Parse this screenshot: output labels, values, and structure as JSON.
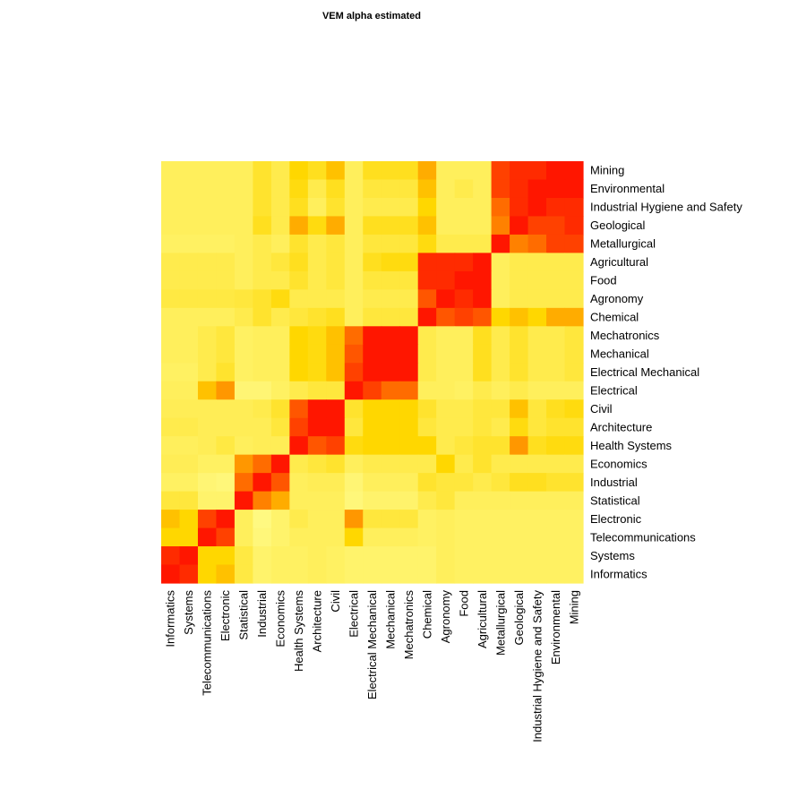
{
  "chart_data": {
    "type": "heatmap",
    "title": "VEM alpha estimated",
    "x_labels": [
      "Informatics",
      "Systems",
      "Telecommunications",
      "Electronic",
      "Statistical",
      "Industrial",
      "Economics",
      "Health Systems",
      "Architecture",
      "Civil",
      "Electrical",
      "Electrical Mechanical",
      "Mechanical",
      "Mechatronics",
      "Chemical",
      "Agronomy",
      "Food",
      "Agricultural",
      "Metallurgical",
      "Geological",
      "Industrial Hygiene and Safety",
      "Environmental",
      "Mining"
    ],
    "y_labels_top_to_bottom": [
      "Mining",
      "Environmental",
      "Industrial Hygiene and Safety",
      "Geological",
      "Metallurgical",
      "Agricultural",
      "Food",
      "Agronomy",
      "Chemical",
      "Mechatronics",
      "Mechanical",
      "Electrical Mechanical",
      "Electrical",
      "Civil",
      "Architecture",
      "Health Systems",
      "Economics",
      "Industrial",
      "Statistical",
      "Electronic",
      "Telecommunications",
      "Systems",
      "Informatics"
    ],
    "color_scale": {
      "low": "#ffff99",
      "mid": "#ffd700",
      "high": "#ff0000"
    },
    "value_range": [
      0,
      1
    ],
    "grid": false,
    "legend": "none",
    "values": [
      [
        0.2,
        0.2,
        0.2,
        0.2,
        0.2,
        0.35,
        0.25,
        0.5,
        0.4,
        0.55,
        0.2,
        0.4,
        0.4,
        0.4,
        0.6,
        0.2,
        0.2,
        0.2,
        0.85,
        0.9,
        0.9,
        0.95,
        0.95
      ],
      [
        0.2,
        0.2,
        0.2,
        0.2,
        0.2,
        0.35,
        0.25,
        0.45,
        0.25,
        0.4,
        0.2,
        0.3,
        0.3,
        0.3,
        0.55,
        0.2,
        0.25,
        0.2,
        0.85,
        0.9,
        0.95,
        0.95,
        0.95
      ],
      [
        0.2,
        0.2,
        0.2,
        0.2,
        0.2,
        0.35,
        0.25,
        0.4,
        0.2,
        0.35,
        0.2,
        0.25,
        0.25,
        0.25,
        0.5,
        0.2,
        0.2,
        0.2,
        0.75,
        0.9,
        0.95,
        0.9,
        0.9
      ],
      [
        0.2,
        0.2,
        0.2,
        0.2,
        0.2,
        0.4,
        0.25,
        0.6,
        0.45,
        0.6,
        0.2,
        0.4,
        0.4,
        0.4,
        0.55,
        0.2,
        0.2,
        0.2,
        0.7,
        0.95,
        0.85,
        0.85,
        0.9
      ],
      [
        0.18,
        0.18,
        0.18,
        0.18,
        0.2,
        0.25,
        0.2,
        0.35,
        0.25,
        0.3,
        0.2,
        0.3,
        0.3,
        0.3,
        0.45,
        0.25,
        0.25,
        0.25,
        0.95,
        0.7,
        0.75,
        0.85,
        0.85
      ],
      [
        0.25,
        0.25,
        0.25,
        0.25,
        0.2,
        0.25,
        0.3,
        0.4,
        0.25,
        0.3,
        0.2,
        0.4,
        0.45,
        0.45,
        0.9,
        0.9,
        0.9,
        0.95,
        0.2,
        0.25,
        0.25,
        0.25,
        0.25
      ],
      [
        0.25,
        0.25,
        0.25,
        0.25,
        0.2,
        0.25,
        0.25,
        0.35,
        0.25,
        0.3,
        0.2,
        0.3,
        0.3,
        0.3,
        0.9,
        0.9,
        0.95,
        0.95,
        0.2,
        0.25,
        0.25,
        0.25,
        0.25
      ],
      [
        0.28,
        0.28,
        0.28,
        0.28,
        0.3,
        0.35,
        0.45,
        0.25,
        0.25,
        0.25,
        0.2,
        0.25,
        0.25,
        0.25,
        0.8,
        0.95,
        0.9,
        0.95,
        0.2,
        0.25,
        0.25,
        0.25,
        0.25
      ],
      [
        0.2,
        0.2,
        0.2,
        0.2,
        0.25,
        0.35,
        0.25,
        0.3,
        0.35,
        0.4,
        0.2,
        0.3,
        0.3,
        0.3,
        0.95,
        0.8,
        0.85,
        0.8,
        0.5,
        0.55,
        0.5,
        0.6,
        0.6
      ],
      [
        0.2,
        0.2,
        0.25,
        0.3,
        0.18,
        0.2,
        0.2,
        0.5,
        0.45,
        0.55,
        0.75,
        0.95,
        0.95,
        0.95,
        0.25,
        0.2,
        0.2,
        0.4,
        0.25,
        0.35,
        0.25,
        0.25,
        0.3
      ],
      [
        0.2,
        0.2,
        0.25,
        0.3,
        0.18,
        0.2,
        0.2,
        0.5,
        0.45,
        0.55,
        0.8,
        0.95,
        0.95,
        0.95,
        0.25,
        0.2,
        0.2,
        0.4,
        0.25,
        0.35,
        0.25,
        0.25,
        0.3
      ],
      [
        0.18,
        0.18,
        0.25,
        0.35,
        0.18,
        0.2,
        0.2,
        0.5,
        0.45,
        0.55,
        0.85,
        0.95,
        0.95,
        0.95,
        0.25,
        0.2,
        0.2,
        0.4,
        0.25,
        0.35,
        0.25,
        0.25,
        0.3
      ],
      [
        0.2,
        0.2,
        0.55,
        0.65,
        0.12,
        0.12,
        0.18,
        0.25,
        0.3,
        0.3,
        0.95,
        0.85,
        0.75,
        0.75,
        0.2,
        0.2,
        0.18,
        0.25,
        0.2,
        0.25,
        0.2,
        0.2,
        0.2
      ],
      [
        0.22,
        0.22,
        0.22,
        0.22,
        0.22,
        0.25,
        0.35,
        0.8,
        0.95,
        0.95,
        0.35,
        0.5,
        0.5,
        0.5,
        0.35,
        0.25,
        0.25,
        0.3,
        0.3,
        0.55,
        0.3,
        0.4,
        0.45
      ],
      [
        0.25,
        0.25,
        0.22,
        0.22,
        0.22,
        0.22,
        0.3,
        0.85,
        0.95,
        0.95,
        0.3,
        0.5,
        0.5,
        0.5,
        0.3,
        0.25,
        0.25,
        0.3,
        0.25,
        0.45,
        0.3,
        0.35,
        0.35
      ],
      [
        0.2,
        0.2,
        0.22,
        0.28,
        0.2,
        0.22,
        0.22,
        0.95,
        0.8,
        0.85,
        0.45,
        0.5,
        0.5,
        0.5,
        0.5,
        0.25,
        0.3,
        0.35,
        0.35,
        0.65,
        0.4,
        0.45,
        0.45
      ],
      [
        0.22,
        0.22,
        0.18,
        0.18,
        0.65,
        0.75,
        0.95,
        0.25,
        0.3,
        0.35,
        0.2,
        0.25,
        0.25,
        0.25,
        0.25,
        0.5,
        0.25,
        0.35,
        0.25,
        0.25,
        0.25,
        0.25,
        0.25
      ],
      [
        0.18,
        0.18,
        0.12,
        0.1,
        0.75,
        0.95,
        0.8,
        0.2,
        0.22,
        0.22,
        0.12,
        0.2,
        0.2,
        0.2,
        0.35,
        0.3,
        0.3,
        0.25,
        0.3,
        0.4,
        0.4,
        0.35,
        0.35
      ],
      [
        0.3,
        0.3,
        0.15,
        0.15,
        0.95,
        0.7,
        0.6,
        0.2,
        0.2,
        0.2,
        0.1,
        0.15,
        0.15,
        0.15,
        0.25,
        0.3,
        0.2,
        0.2,
        0.2,
        0.2,
        0.2,
        0.2,
        0.2
      ],
      [
        0.55,
        0.5,
        0.85,
        0.95,
        0.2,
        0.08,
        0.15,
        0.25,
        0.2,
        0.2,
        0.65,
        0.3,
        0.3,
        0.3,
        0.18,
        0.2,
        0.18,
        0.18,
        0.18,
        0.18,
        0.18,
        0.18,
        0.18
      ],
      [
        0.5,
        0.5,
        0.95,
        0.85,
        0.2,
        0.1,
        0.15,
        0.2,
        0.2,
        0.2,
        0.5,
        0.2,
        0.2,
        0.2,
        0.18,
        0.2,
        0.18,
        0.18,
        0.18,
        0.18,
        0.18,
        0.18,
        0.18
      ],
      [
        0.9,
        0.95,
        0.5,
        0.5,
        0.28,
        0.15,
        0.18,
        0.18,
        0.2,
        0.18,
        0.15,
        0.15,
        0.15,
        0.15,
        0.15,
        0.2,
        0.18,
        0.18,
        0.18,
        0.18,
        0.18,
        0.18,
        0.18
      ],
      [
        0.95,
        0.9,
        0.5,
        0.55,
        0.28,
        0.15,
        0.18,
        0.18,
        0.2,
        0.18,
        0.15,
        0.15,
        0.15,
        0.15,
        0.15,
        0.2,
        0.18,
        0.18,
        0.18,
        0.18,
        0.18,
        0.18,
        0.18
      ]
    ]
  }
}
